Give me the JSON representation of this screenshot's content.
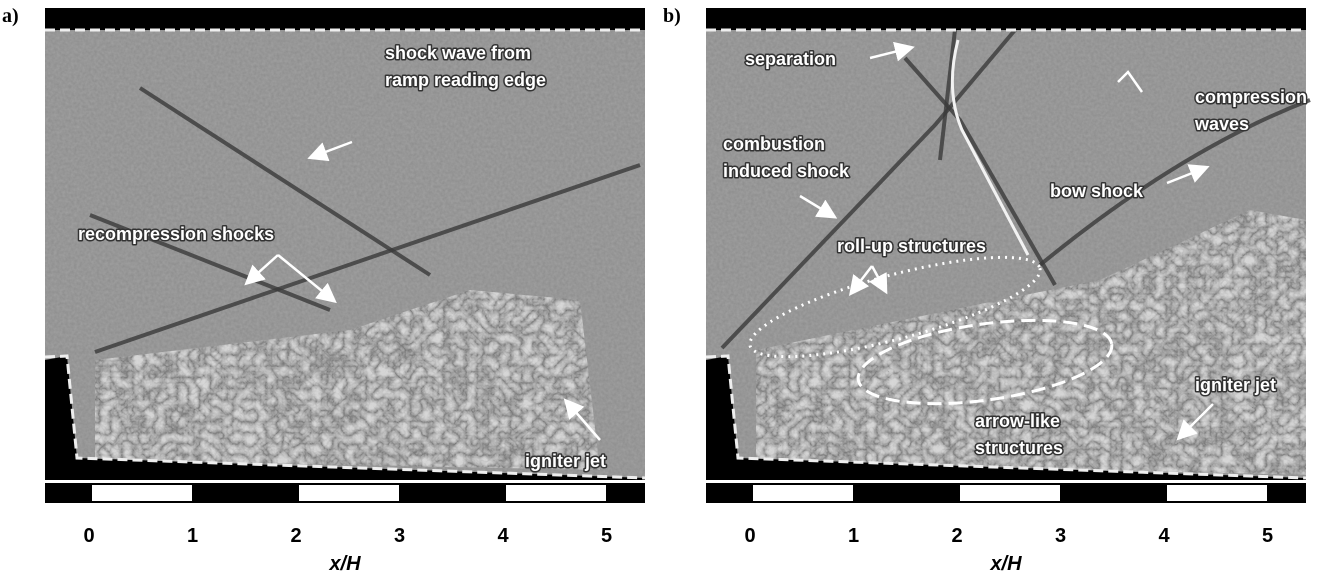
{
  "panels": [
    {
      "label": "a)",
      "annotations": [
        {
          "lines": [
            "shock wave from",
            "ramp reading edge"
          ]
        },
        {
          "lines": [
            "recompression shocks"
          ]
        },
        {
          "lines": [
            "igniter jet"
          ]
        }
      ],
      "x_ticks": [
        0,
        1,
        2,
        3,
        4,
        5
      ],
      "x_label": "x/H"
    },
    {
      "label": "b)",
      "annotations": [
        {
          "lines": [
            "separation"
          ]
        },
        {
          "lines": [
            "compression",
            "waves"
          ]
        },
        {
          "lines": [
            "combustion",
            "induced shock"
          ]
        },
        {
          "lines": [
            "bow shock"
          ]
        },
        {
          "lines": [
            "roll-up structures"
          ]
        },
        {
          "lines": [
            "arrow-like",
            "structures"
          ]
        },
        {
          "lines": [
            "igniter jet"
          ]
        }
      ],
      "x_ticks": [
        0,
        1,
        2,
        3,
        4,
        5
      ],
      "x_label": "x/H"
    }
  ]
}
